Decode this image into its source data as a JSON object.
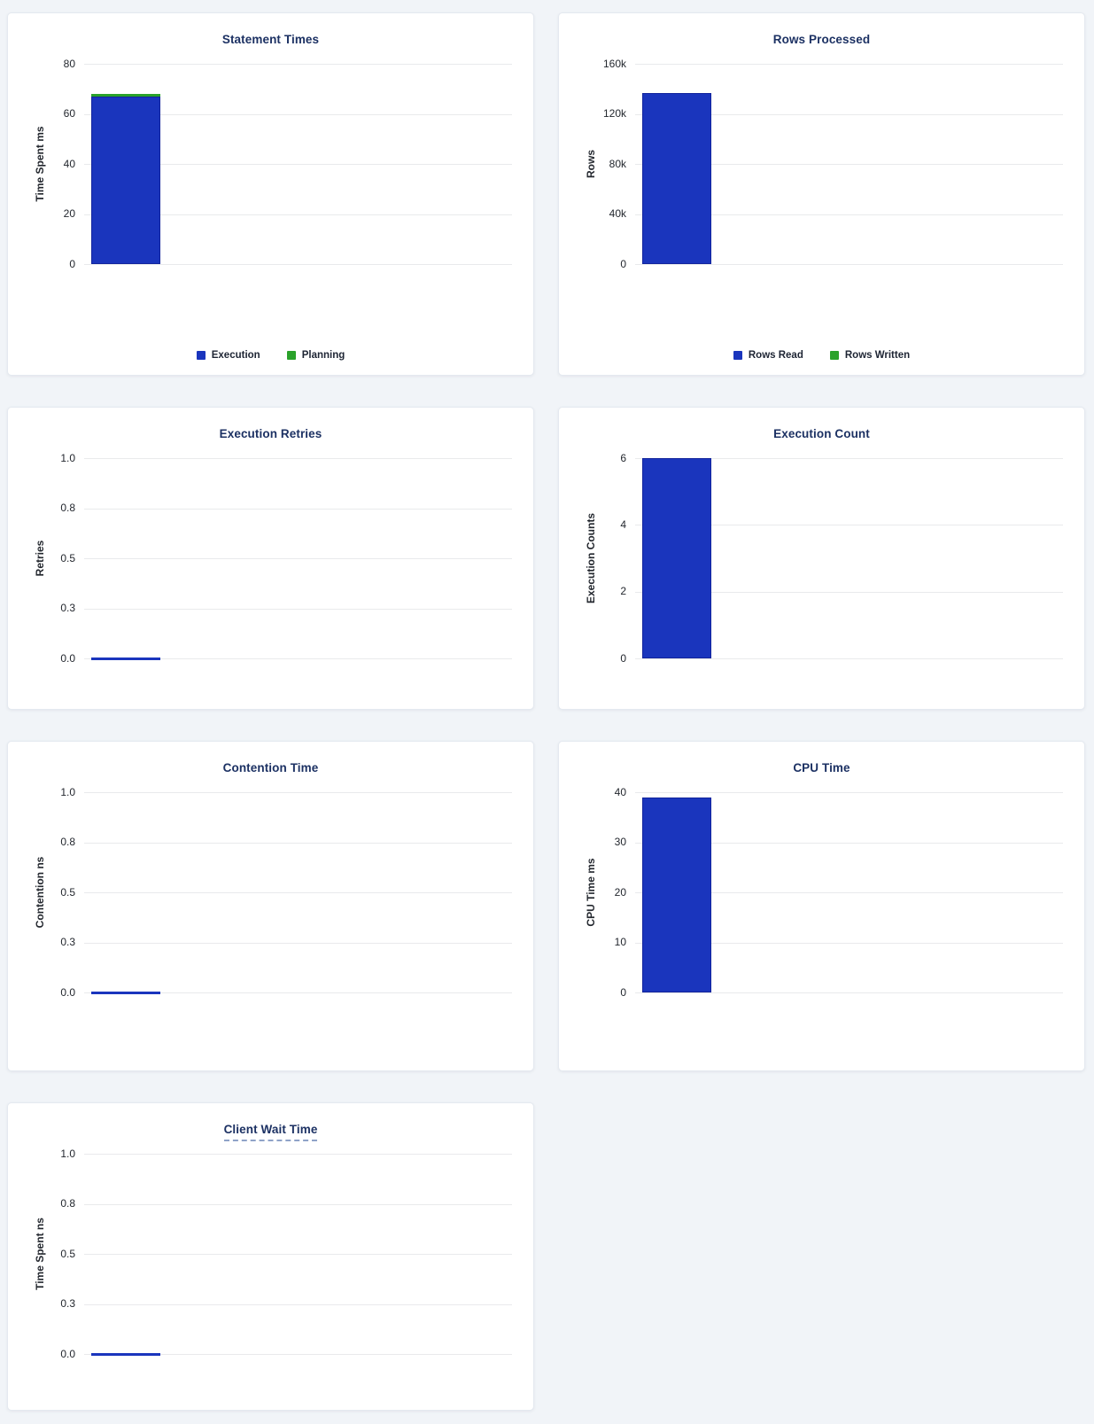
{
  "colors": {
    "page_bg": "#f1f4f8",
    "card_bg": "#ffffff",
    "card_border": "#e4e9f0",
    "title_text": "#1c3163",
    "grid_line": "#e9eaec",
    "tick_text": "#23272e",
    "legend_text": "#1d2433",
    "blue": "#1a35bd",
    "blue_edge": "#12249c",
    "green": "#2aa22a",
    "dashed_underline": "#8fa3c8"
  },
  "chart_data": [
    {
      "id": "statement-times",
      "type": "bar",
      "title": "Statement Times",
      "ylabel": "Time Spent ms",
      "ylim": [
        0,
        80
      ],
      "yticks": [
        {
          "label": "80",
          "value": 80
        },
        {
          "label": "60",
          "value": 60
        },
        {
          "label": "40",
          "value": 40
        },
        {
          "label": "20",
          "value": 20
        },
        {
          "label": "0",
          "value": 0
        }
      ],
      "legend": true,
      "legend_position": "bottom-center",
      "grid": true,
      "series": [
        {
          "name": "Execution",
          "color_key": "blue",
          "values": [
            67
          ]
        },
        {
          "name": "Planning",
          "color_key": "green",
          "values": [
            1
          ]
        }
      ]
    },
    {
      "id": "rows-processed",
      "type": "bar",
      "title": "Rows Processed",
      "ylabel": "Rows",
      "ylim": [
        0,
        160000
      ],
      "yticks": [
        {
          "label": "160k",
          "value": 160000
        },
        {
          "label": "120k",
          "value": 120000
        },
        {
          "label": "80k",
          "value": 80000
        },
        {
          "label": "40k",
          "value": 40000
        },
        {
          "label": "0",
          "value": 0
        }
      ],
      "legend": true,
      "legend_position": "bottom-center",
      "grid": true,
      "series": [
        {
          "name": "Rows Read",
          "color_key": "blue",
          "values": [
            137000
          ]
        },
        {
          "name": "Rows Written",
          "color_key": "green",
          "values": [
            0
          ]
        }
      ]
    },
    {
      "id": "execution-retries",
      "type": "bar",
      "title": "Execution Retries",
      "ylabel": "Retries",
      "ylim": [
        0,
        1
      ],
      "yticks": [
        {
          "label": "1.0",
          "value": 1
        },
        {
          "label": "0.8",
          "value": 0.75
        },
        {
          "label": "0.5",
          "value": 0.5
        },
        {
          "label": "0.3",
          "value": 0.25
        },
        {
          "label": "0.0",
          "value": 0
        }
      ],
      "legend": false,
      "grid": true,
      "series": [
        {
          "color_key": "blue",
          "values": [
            0
          ]
        }
      ]
    },
    {
      "id": "execution-count",
      "type": "bar",
      "title": "Execution Count",
      "ylabel": "Execution Counts",
      "ylim": [
        0,
        6
      ],
      "yticks": [
        {
          "label": "6",
          "value": 6
        },
        {
          "label": "4",
          "value": 4
        },
        {
          "label": "2",
          "value": 2
        },
        {
          "label": "0",
          "value": 0
        }
      ],
      "legend": false,
      "grid": true,
      "series": [
        {
          "color_key": "blue",
          "values": [
            6
          ]
        }
      ]
    },
    {
      "id": "contention-time",
      "type": "bar",
      "title": "Contention Time",
      "ylabel": "Contention ns",
      "ylim": [
        0,
        1
      ],
      "yticks": [
        {
          "label": "1.0",
          "value": 1
        },
        {
          "label": "0.8",
          "value": 0.75
        },
        {
          "label": "0.5",
          "value": 0.5
        },
        {
          "label": "0.3",
          "value": 0.25
        },
        {
          "label": "0.0",
          "value": 0
        }
      ],
      "legend": false,
      "grid": true,
      "series": [
        {
          "color_key": "blue",
          "values": [
            0
          ]
        }
      ]
    },
    {
      "id": "cpu-time",
      "type": "bar",
      "title": "CPU Time",
      "ylabel": "CPU Time ms",
      "ylim": [
        0,
        40
      ],
      "yticks": [
        {
          "label": "40",
          "value": 40
        },
        {
          "label": "30",
          "value": 30
        },
        {
          "label": "20",
          "value": 20
        },
        {
          "label": "10",
          "value": 10
        },
        {
          "label": "0",
          "value": 0
        }
      ],
      "legend": false,
      "grid": true,
      "series": [
        {
          "color_key": "blue",
          "values": [
            39
          ]
        }
      ]
    },
    {
      "id": "client-wait-time",
      "type": "bar",
      "title": "Client Wait Time",
      "underlined_title": true,
      "ylabel": "Time Spent ns",
      "ylim": [
        0,
        1
      ],
      "yticks": [
        {
          "label": "1.0",
          "value": 1
        },
        {
          "label": "0.8",
          "value": 0.75
        },
        {
          "label": "0.5",
          "value": 0.5
        },
        {
          "label": "0.3",
          "value": 0.25
        },
        {
          "label": "0.0",
          "value": 0
        }
      ],
      "legend": false,
      "grid": true,
      "series": [
        {
          "color_key": "blue",
          "values": [
            0
          ]
        }
      ]
    }
  ]
}
